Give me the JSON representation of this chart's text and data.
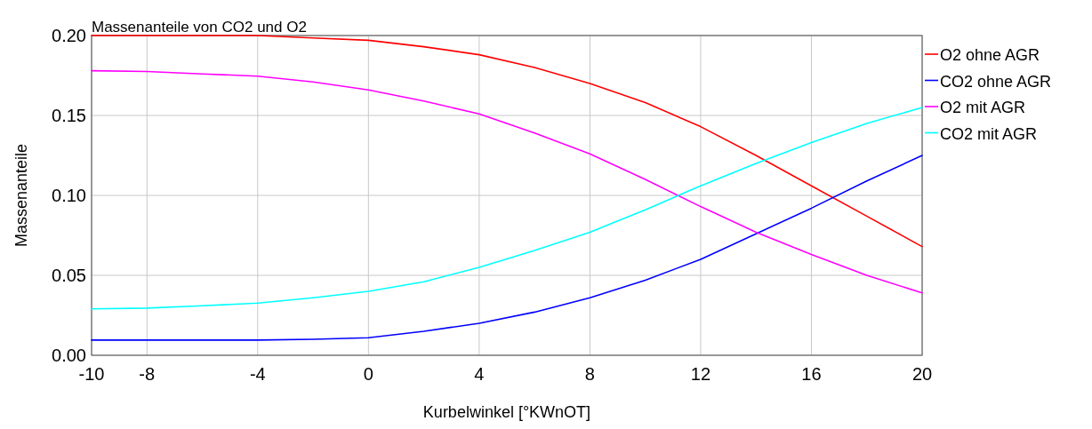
{
  "chart_data": {
    "type": "line",
    "title": "Massenanteile von CO2 und O2",
    "xlabel": "Kurbelwinkel [°KWnOT]",
    "ylabel": "Massenanteile",
    "x": [
      -10,
      -8,
      -6,
      -4,
      -2,
      0,
      2,
      4,
      6,
      8,
      10,
      12,
      14,
      16,
      18,
      20
    ],
    "series": [
      {
        "name": "O2 ohne AGR",
        "color": "#ff0000",
        "values": [
          0.2,
          0.2,
          0.2,
          0.2,
          0.1985,
          0.197,
          0.193,
          0.188,
          0.18,
          0.17,
          0.158,
          0.143,
          0.125,
          0.106,
          0.087,
          0.068
        ]
      },
      {
        "name": "CO2 ohne AGR",
        "color": "#0000ff",
        "values": [
          0.0095,
          0.0095,
          0.0095,
          0.0095,
          0.01,
          0.011,
          0.015,
          0.02,
          0.027,
          0.036,
          0.047,
          0.06,
          0.076,
          0.092,
          0.109,
          0.125
        ]
      },
      {
        "name": "O2 mit AGR",
        "color": "#ff00ff",
        "values": [
          0.178,
          0.1775,
          0.176,
          0.1746,
          0.171,
          0.166,
          0.159,
          0.151,
          0.139,
          0.126,
          0.11,
          0.093,
          0.077,
          0.063,
          0.05,
          0.039
        ]
      },
      {
        "name": "CO2 mit AGR",
        "color": "#00ffff",
        "values": [
          0.029,
          0.0295,
          0.031,
          0.0326,
          0.036,
          0.04,
          0.046,
          0.055,
          0.0655,
          0.077,
          0.091,
          0.106,
          0.12,
          0.133,
          0.145,
          0.155
        ]
      }
    ],
    "xlim": [
      -10,
      20
    ],
    "xticks": [
      -10,
      -8,
      -4,
      0,
      4,
      8,
      12,
      16,
      20
    ],
    "ylim": [
      0,
      0.2
    ],
    "yticks": [
      {
        "value": 0,
        "label": "0.00"
      },
      {
        "value": 0.05,
        "label": "0.05"
      },
      {
        "value": 0.1,
        "label": "0.10"
      },
      {
        "value": 0.15,
        "label": "0.15"
      },
      {
        "value": 0.2,
        "label": "0.20"
      }
    ],
    "grid": true,
    "legend": "top right",
    "marker": "none",
    "line_style": "solid"
  }
}
